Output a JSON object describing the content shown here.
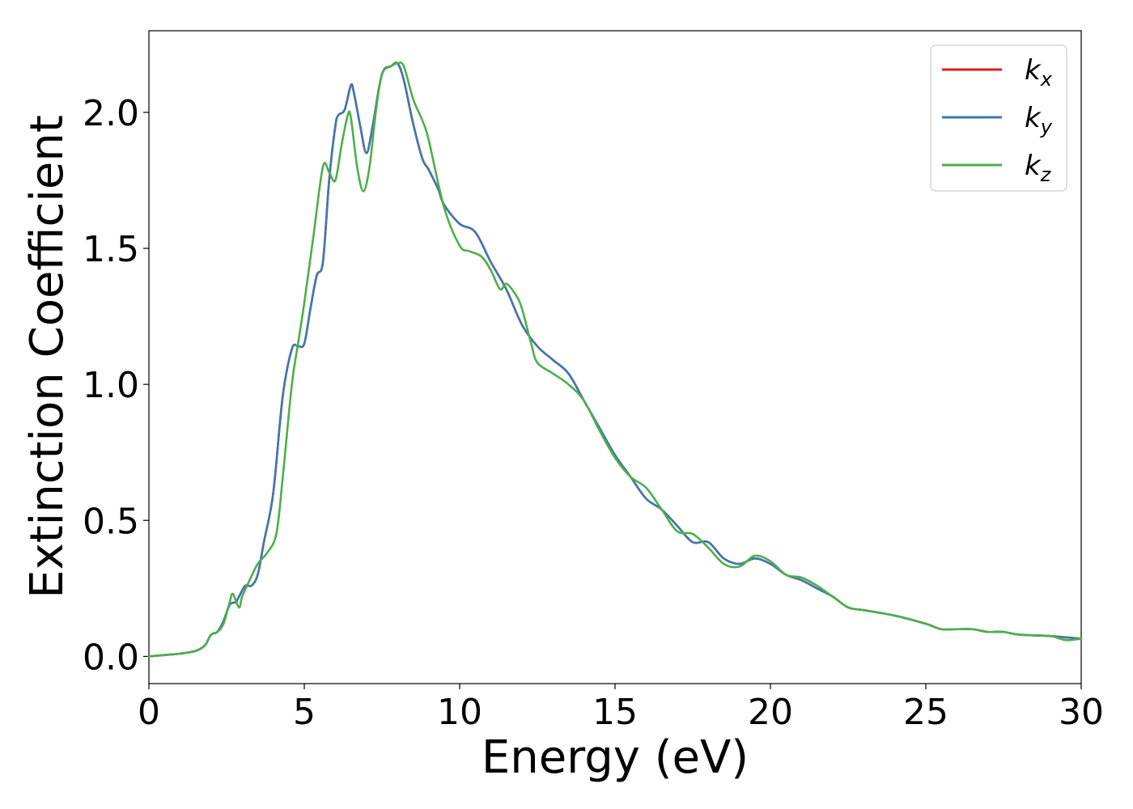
{
  "chart_data": {
    "type": "line",
    "title": "",
    "xlabel": "Energy (eV)",
    "ylabel": "Extinction Coefficient",
    "xlim": [
      0,
      30
    ],
    "ylim": [
      -0.1,
      2.3
    ],
    "xticks": [
      0,
      5,
      10,
      15,
      20,
      25,
      30
    ],
    "xtick_labels": [
      "0",
      "5",
      "10",
      "15",
      "20",
      "25",
      "30"
    ],
    "yticks": [
      0.0,
      0.5,
      1.0,
      1.5,
      2.0
    ],
    "ytick_labels": [
      "0.0",
      "0.5",
      "1.0",
      "1.5",
      "2.0"
    ],
    "grid": false,
    "legend_position": "top-right",
    "series": [
      {
        "name": "k_x",
        "label_base": "k",
        "label_sub": "x",
        "color": "#e41a1c",
        "x": [
          0,
          0.5,
          1,
          1.5,
          1.8,
          2,
          2.2,
          2.4,
          2.6,
          2.8,
          2.9,
          3.1,
          3.3,
          3.5,
          3.7,
          4,
          4.3,
          4.6,
          4.8,
          5,
          5.2,
          5.4,
          5.6,
          5.8,
          6,
          6.1,
          6.3,
          6.5,
          6.6,
          6.8,
          7,
          7.2,
          7.5,
          7.8,
          8,
          8.2,
          8.5,
          8.8,
          9,
          9.3,
          9.5,
          10,
          10.5,
          11,
          11.5,
          12,
          12.5,
          13,
          13.5,
          14,
          14.5,
          15,
          15.5,
          16,
          16.5,
          17,
          17.5,
          18,
          18.5,
          19,
          19.5,
          20,
          20.5,
          21,
          21.5,
          22,
          22.5,
          23,
          24,
          25,
          25.5,
          26,
          26.5,
          27,
          27.5,
          28,
          29,
          29.5,
          30
        ],
        "y": [
          0,
          0.005,
          0.01,
          0.02,
          0.04,
          0.08,
          0.09,
          0.13,
          0.19,
          0.2,
          0.22,
          0.26,
          0.26,
          0.3,
          0.42,
          0.6,
          0.95,
          1.13,
          1.14,
          1.15,
          1.28,
          1.4,
          1.45,
          1.75,
          1.95,
          1.99,
          2.01,
          2.1,
          2.07,
          1.95,
          1.85,
          1.95,
          2.14,
          2.17,
          2.18,
          2.12,
          1.96,
          1.83,
          1.79,
          1.72,
          1.66,
          1.59,
          1.56,
          1.45,
          1.35,
          1.22,
          1.14,
          1.09,
          1.04,
          0.94,
          0.84,
          0.74,
          0.66,
          0.58,
          0.54,
          0.48,
          0.42,
          0.42,
          0.36,
          0.34,
          0.36,
          0.34,
          0.3,
          0.28,
          0.25,
          0.22,
          0.18,
          0.17,
          0.15,
          0.12,
          0.1,
          0.1,
          0.1,
          0.09,
          0.09,
          0.08,
          0.075,
          0.07,
          0.065
        ]
      },
      {
        "name": "k_y",
        "label_base": "k",
        "label_sub": "y",
        "color": "#3f78b2",
        "x": [
          0,
          0.5,
          1,
          1.5,
          1.8,
          2,
          2.2,
          2.4,
          2.6,
          2.8,
          2.9,
          3.1,
          3.3,
          3.5,
          3.7,
          4,
          4.3,
          4.6,
          4.8,
          5,
          5.2,
          5.4,
          5.6,
          5.8,
          6,
          6.1,
          6.3,
          6.5,
          6.6,
          6.8,
          7,
          7.2,
          7.5,
          7.8,
          8,
          8.2,
          8.5,
          8.8,
          9,
          9.3,
          9.5,
          10,
          10.5,
          11,
          11.5,
          12,
          12.5,
          13,
          13.5,
          14,
          14.5,
          15,
          15.5,
          16,
          16.5,
          17,
          17.5,
          18,
          18.5,
          19,
          19.5,
          20,
          20.5,
          21,
          21.5,
          22,
          22.5,
          23,
          24,
          25,
          25.5,
          26,
          26.5,
          27,
          27.5,
          28,
          29,
          29.5,
          30
        ],
        "y": [
          0,
          0.005,
          0.01,
          0.02,
          0.04,
          0.08,
          0.09,
          0.13,
          0.19,
          0.2,
          0.22,
          0.26,
          0.26,
          0.3,
          0.42,
          0.6,
          0.95,
          1.13,
          1.14,
          1.15,
          1.28,
          1.4,
          1.45,
          1.75,
          1.95,
          1.99,
          2.01,
          2.1,
          2.07,
          1.95,
          1.85,
          1.95,
          2.14,
          2.17,
          2.18,
          2.12,
          1.96,
          1.83,
          1.79,
          1.72,
          1.66,
          1.59,
          1.56,
          1.45,
          1.35,
          1.22,
          1.14,
          1.09,
          1.04,
          0.94,
          0.84,
          0.74,
          0.66,
          0.58,
          0.54,
          0.48,
          0.42,
          0.42,
          0.36,
          0.34,
          0.36,
          0.34,
          0.3,
          0.28,
          0.25,
          0.22,
          0.18,
          0.17,
          0.15,
          0.12,
          0.1,
          0.1,
          0.1,
          0.09,
          0.09,
          0.08,
          0.075,
          0.07,
          0.065
        ]
      },
      {
        "name": "k_z",
        "label_base": "k",
        "label_sub": "z",
        "color": "#4daf4a",
        "x": [
          0,
          0.5,
          1,
          1.5,
          1.8,
          2,
          2.2,
          2.4,
          2.6,
          2.7,
          2.9,
          3,
          3.2,
          3.5,
          3.8,
          4.1,
          4.3,
          4.6,
          4.8,
          5,
          5.3,
          5.6,
          5.8,
          6,
          6.2,
          6.4,
          6.5,
          6.7,
          6.9,
          7.1,
          7.3,
          7.5,
          7.8,
          8,
          8.2,
          8.5,
          8.8,
          9,
          9.5,
          10,
          10.3,
          10.7,
          11,
          11.3,
          11.5,
          11.8,
          12,
          12.3,
          12.5,
          13,
          13.5,
          14,
          14.5,
          15,
          15.5,
          16,
          16.5,
          17,
          17.5,
          18,
          18.5,
          19,
          19.5,
          20,
          20.5,
          21,
          21.5,
          22,
          22.5,
          23,
          24,
          25,
          25.5,
          26,
          26.5,
          27,
          27.5,
          28,
          29,
          29.5,
          30
        ],
        "y": [
          0,
          0.005,
          0.01,
          0.02,
          0.04,
          0.08,
          0.09,
          0.12,
          0.2,
          0.23,
          0.18,
          0.22,
          0.27,
          0.34,
          0.38,
          0.45,
          0.65,
          1.0,
          1.15,
          1.3,
          1.55,
          1.8,
          1.78,
          1.75,
          1.88,
          1.99,
          1.98,
          1.8,
          1.71,
          1.8,
          2.0,
          2.14,
          2.17,
          2.18,
          2.17,
          2.05,
          1.97,
          1.9,
          1.65,
          1.51,
          1.49,
          1.47,
          1.42,
          1.35,
          1.37,
          1.33,
          1.28,
          1.15,
          1.08,
          1.04,
          1.0,
          0.94,
          0.83,
          0.73,
          0.66,
          0.62,
          0.54,
          0.46,
          0.45,
          0.4,
          0.34,
          0.33,
          0.37,
          0.35,
          0.3,
          0.29,
          0.26,
          0.22,
          0.18,
          0.17,
          0.15,
          0.12,
          0.1,
          0.1,
          0.1,
          0.09,
          0.09,
          0.08,
          0.075,
          0.06,
          0.065
        ]
      }
    ]
  }
}
